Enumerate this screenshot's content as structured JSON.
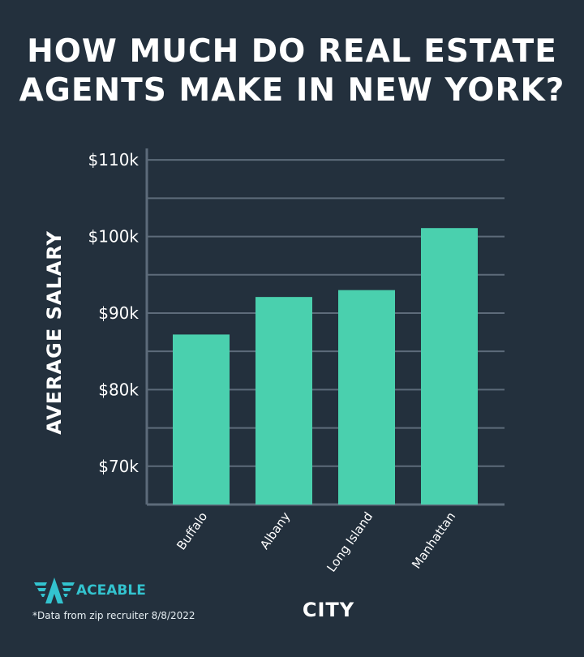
{
  "chart_data": {
    "type": "bar",
    "title": [
      "HOW MUCH DO REAL ESTATE",
      "AGENTS MAKE IN NEW YORK?"
    ],
    "xlabel": "CITY",
    "ylabel": "AVERAGE SALARY",
    "categories": [
      "Buffalo",
      "Albany",
      "Long Island",
      "Manhattan"
    ],
    "values": [
      87.2,
      92.1,
      93.0,
      101.1
    ],
    "unit": "thousand USD",
    "ylim": [
      65,
      111.5
    ],
    "yticks": [
      70,
      80,
      90,
      100,
      110
    ],
    "ytick_labels": [
      "$70k",
      "$80k",
      "$90k",
      "$100k",
      "$110k"
    ],
    "gridlines": [
      70,
      75,
      80,
      85,
      90,
      95,
      100,
      105,
      110
    ],
    "grid": true,
    "bar_color": "#4ad0ae",
    "grid_color": "#5d6b7a",
    "background": "#23303d"
  },
  "brand": {
    "name": "ACEABLE",
    "color": "#33c3cf"
  },
  "footnote": "*Data from zip recruiter 8/8/2022"
}
